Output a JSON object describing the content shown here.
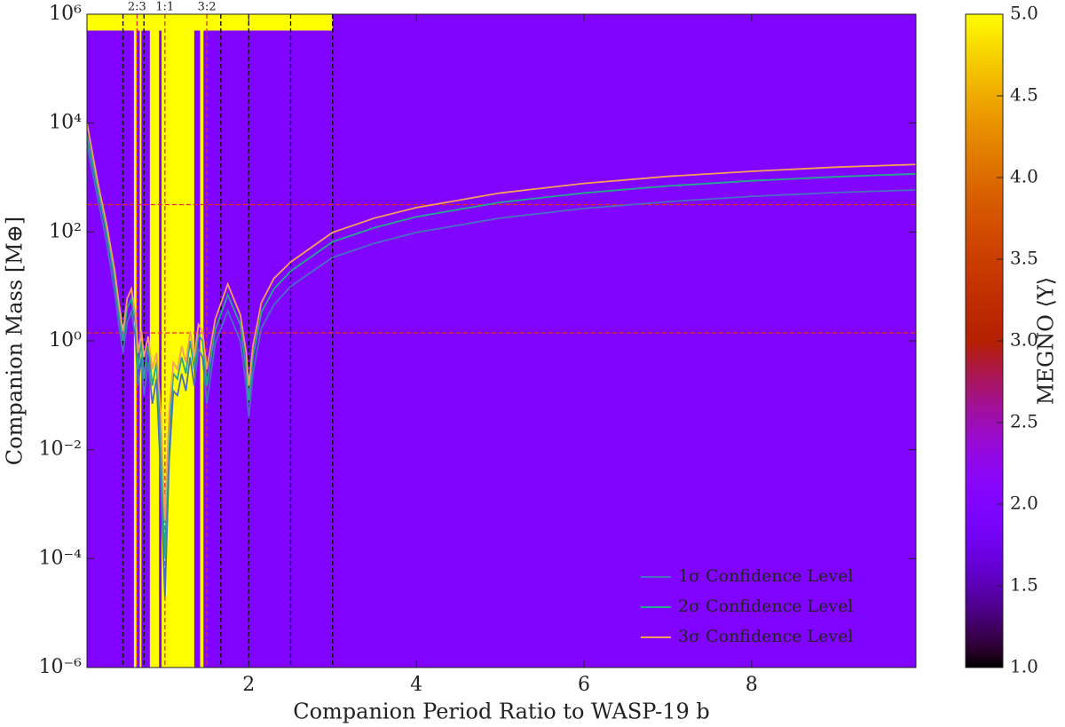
{
  "chart_data": {
    "type": "line",
    "xlabel": "Companion Period Ratio to WASP-19 b",
    "ylabel": "Companion Mass [M⊕]",
    "xlim": [
      0.07,
      9.96
    ],
    "ylim": [
      1e-06,
      1000000
    ],
    "yscale": "log",
    "xticks": [
      2,
      4,
      6,
      8
    ],
    "yticks": [
      {
        "value": 1000000,
        "label": "10⁶"
      },
      {
        "value": 10000,
        "label": "10⁴"
      },
      {
        "value": 100,
        "label": "10²"
      },
      {
        "value": 1,
        "label": "10⁰"
      },
      {
        "value": 0.01,
        "label": "10⁻²"
      },
      {
        "value": 0.0001,
        "label": "10⁻⁴"
      },
      {
        "value": 1e-06,
        "label": "10⁻⁶"
      }
    ],
    "x": [
      0.07,
      0.2,
      0.3,
      0.4,
      0.45,
      0.5,
      0.55,
      0.6,
      0.65,
      0.68,
      0.72,
      0.75,
      0.8,
      0.85,
      0.9,
      0.95,
      1.0,
      1.05,
      1.1,
      1.15,
      1.2,
      1.25,
      1.3,
      1.35,
      1.4,
      1.45,
      1.5,
      1.6,
      1.75,
      1.9,
      1.97,
      2.0,
      2.05,
      2.15,
      2.3,
      2.5,
      3.0,
      3.5,
      4,
      5,
      6,
      7,
      8,
      9,
      9.96
    ],
    "series": [
      {
        "name": "1σ Confidence Level",
        "color": "#4a6fc0",
        "values": [
          4000,
          400,
          70,
          8,
          2,
          0.6,
          2.2,
          3.5,
          1.1,
          0.15,
          0.5,
          0.1,
          0.4,
          0.07,
          0.2,
          0.003,
          2e-05,
          0.006,
          0.12,
          0.1,
          0.25,
          0.12,
          0.5,
          0.15,
          0.7,
          0.5,
          0.07,
          0.9,
          3.6,
          1.0,
          0.15,
          0.04,
          0.25,
          1.7,
          4.6,
          10,
          34,
          62,
          98,
          180,
          270,
          360,
          450,
          530,
          590
        ]
      },
      {
        "name": "2σ Confidence Level",
        "color": "#26a88c",
        "values": [
          6000,
          600,
          110,
          14,
          3.5,
          1.0,
          4,
          6,
          2,
          0.3,
          1,
          0.2,
          0.8,
          0.15,
          0.4,
          0.01,
          0.0001,
          0.02,
          0.25,
          0.2,
          0.5,
          0.25,
          1.0,
          0.3,
          1.3,
          1.0,
          0.15,
          1.6,
          7,
          2,
          0.3,
          0.08,
          0.5,
          3.3,
          9,
          19,
          66,
          120,
          190,
          350,
          520,
          700,
          870,
          1030,
          1170
        ]
      },
      {
        "name": "3σ Confidence Level",
        "color": "#f5a05a",
        "values": [
          10000,
          800,
          150,
          20,
          5,
          1.5,
          6,
          9,
          3,
          0.6,
          1.5,
          0.5,
          1.2,
          0.3,
          0.6,
          0.05,
          0.0005,
          0.05,
          0.4,
          0.3,
          0.8,
          0.4,
          1.5,
          0.5,
          2,
          1.5,
          0.3,
          2.5,
          11,
          3,
          0.6,
          0.15,
          0.8,
          5,
          14,
          28,
          98,
          180,
          280,
          520,
          780,
          1050,
          1300,
          1550,
          1740
        ]
      }
    ],
    "legend": "lower right",
    "heatmap": {
      "colormap": "gnuplot",
      "background_value": 2,
      "regions": [
        {
          "x": [
            0.07,
            3.0
          ],
          "y": [
            500000,
            1000000
          ],
          "value": 5
        },
        {
          "x": [
            0.63,
            0.66
          ],
          "y": [
            1e-06,
            1000000
          ],
          "value": 5
        },
        {
          "x": [
            0.7,
            0.72
          ],
          "y": [
            1e-06,
            1000000
          ],
          "value": 5
        },
        {
          "x": [
            0.82,
            0.93
          ],
          "y": [
            1e-06,
            1000000
          ],
          "value": 5
        },
        {
          "x": [
            0.96,
            1.35
          ],
          "y": [
            1e-06,
            1000000
          ],
          "value": 5
        },
        {
          "x": [
            1.42,
            1.46
          ],
          "y": [
            1e-06,
            1000000
          ],
          "value": 5
        }
      ]
    },
    "colorbar": {
      "label": "MEGNO ⟨Y⟩",
      "lim": [
        1,
        5
      ],
      "ticks": [
        {
          "value": 1,
          "label": "1.0"
        },
        {
          "value": 1.5,
          "label": "1.5"
        },
        {
          "value": 2,
          "label": "2.0"
        },
        {
          "value": 2.5,
          "label": "2.5"
        },
        {
          "value": 3,
          "label": "3.0"
        },
        {
          "value": 3.5,
          "label": "3.5"
        },
        {
          "value": 4,
          "label": "4.0"
        },
        {
          "value": 4.5,
          "label": "4.5"
        },
        {
          "value": 5,
          "label": "5.0"
        }
      ]
    },
    "vlines": [
      {
        "x": 0.5,
        "color": "#000000"
      },
      {
        "x": 0.667,
        "color": "#e0302a"
      },
      {
        "x": 0.75,
        "color": "#000000"
      },
      {
        "x": 1.0,
        "color": "#e0302a"
      },
      {
        "x": 1.5,
        "color": "#e0302a"
      },
      {
        "x": 1.667,
        "color": "#000000"
      },
      {
        "x": 2.0,
        "color": "#000000"
      },
      {
        "x": 2.5,
        "color": "#000000"
      },
      {
        "x": 3.0,
        "color": "#000000"
      }
    ],
    "hlines": [
      {
        "y": 317.8,
        "color": "#e0302a"
      },
      {
        "y": 1.4,
        "color": "#e0302a"
      }
    ],
    "annotations": [
      {
        "x": 0.667,
        "text": "2:3"
      },
      {
        "x": 1.0,
        "text": "1:1"
      },
      {
        "x": 1.5,
        "text": "3:2"
      }
    ]
  }
}
